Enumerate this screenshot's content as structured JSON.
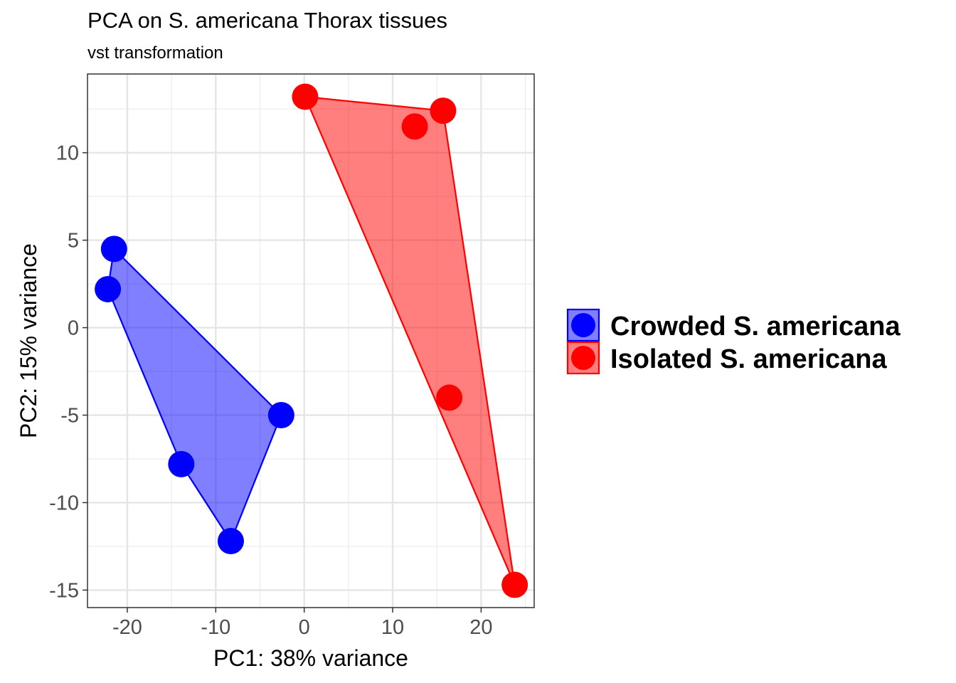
{
  "chart_data": {
    "type": "scatter",
    "title": "PCA on S. americana Thorax tissues",
    "subtitle": "vst transformation",
    "xlabel": "PC1: 38% variance",
    "ylabel": "PC2: 15% variance",
    "xlim": [
      -24.5,
      26
    ],
    "ylim": [
      -16,
      14.5
    ],
    "x_ticks": [
      -20,
      -10,
      0,
      10,
      20
    ],
    "x_tick_labels": [
      "-20",
      "-10",
      "0",
      "10",
      "20"
    ],
    "y_ticks": [
      -15,
      -10,
      -5,
      0,
      5,
      10
    ],
    "y_tick_labels": [
      "-15",
      "-10",
      "-5",
      "0",
      "5",
      "10"
    ],
    "x_minor": [
      -25,
      -15,
      -5,
      5,
      15,
      25
    ],
    "y_minor": [
      -12.5,
      -7.5,
      -2.5,
      2.5,
      7.5,
      12.5
    ],
    "grid": true,
    "legend_position": "right",
    "hull": true,
    "series": [
      {
        "name": "Crowded S. americana",
        "color": "#0000ff",
        "fill": "#0000ff",
        "points": [
          {
            "x": -21.5,
            "y": 4.5
          },
          {
            "x": -22.2,
            "y": 2.2
          },
          {
            "x": -2.6,
            "y": -5.0
          },
          {
            "x": -13.9,
            "y": -7.8
          },
          {
            "x": -8.3,
            "y": -12.2
          }
        ]
      },
      {
        "name": "Isolated S. americana",
        "color": "#ff0000",
        "fill": "#ff0000",
        "points": [
          {
            "x": 0.1,
            "y": 13.2
          },
          {
            "x": 15.7,
            "y": 12.4
          },
          {
            "x": 12.5,
            "y": 11.5
          },
          {
            "x": 16.4,
            "y": -4.0
          },
          {
            "x": 23.8,
            "y": -14.7
          }
        ]
      }
    ]
  }
}
